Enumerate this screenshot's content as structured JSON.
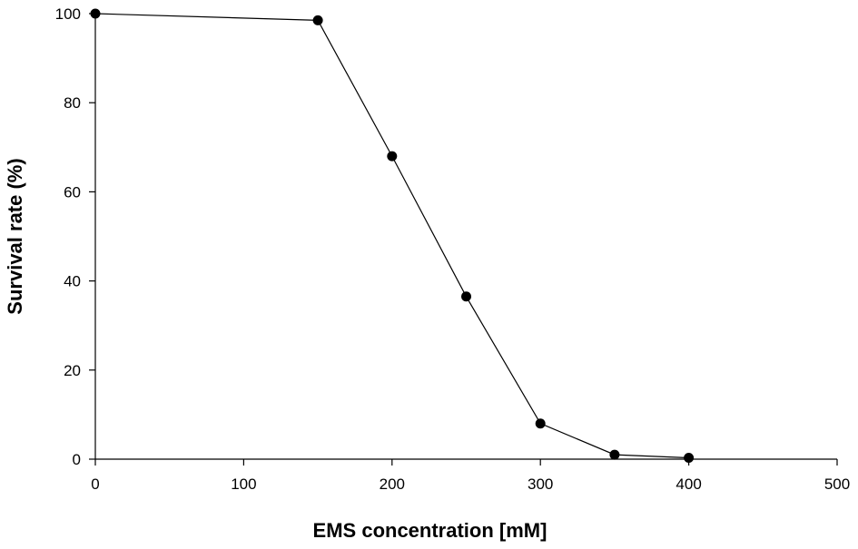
{
  "chart_data": {
    "type": "line",
    "title": "",
    "xlabel": "EMS concentration [mM]",
    "ylabel": "Survival rate (%)",
    "xlim": [
      0,
      500
    ],
    "ylim": [
      0,
      100
    ],
    "xticks": [
      0,
      100,
      200,
      300,
      400,
      500
    ],
    "yticks": [
      0,
      20,
      40,
      60,
      80,
      100
    ],
    "grid": false,
    "legend": "none",
    "series": [
      {
        "x": [
          0,
          150,
          200,
          250,
          300,
          350,
          400
        ],
        "y": [
          100,
          98.5,
          68,
          36.5,
          8,
          1,
          0.3
        ]
      }
    ],
    "colors": {
      "line": "#000000",
      "marker": "#000000",
      "axis": "#000000"
    }
  }
}
